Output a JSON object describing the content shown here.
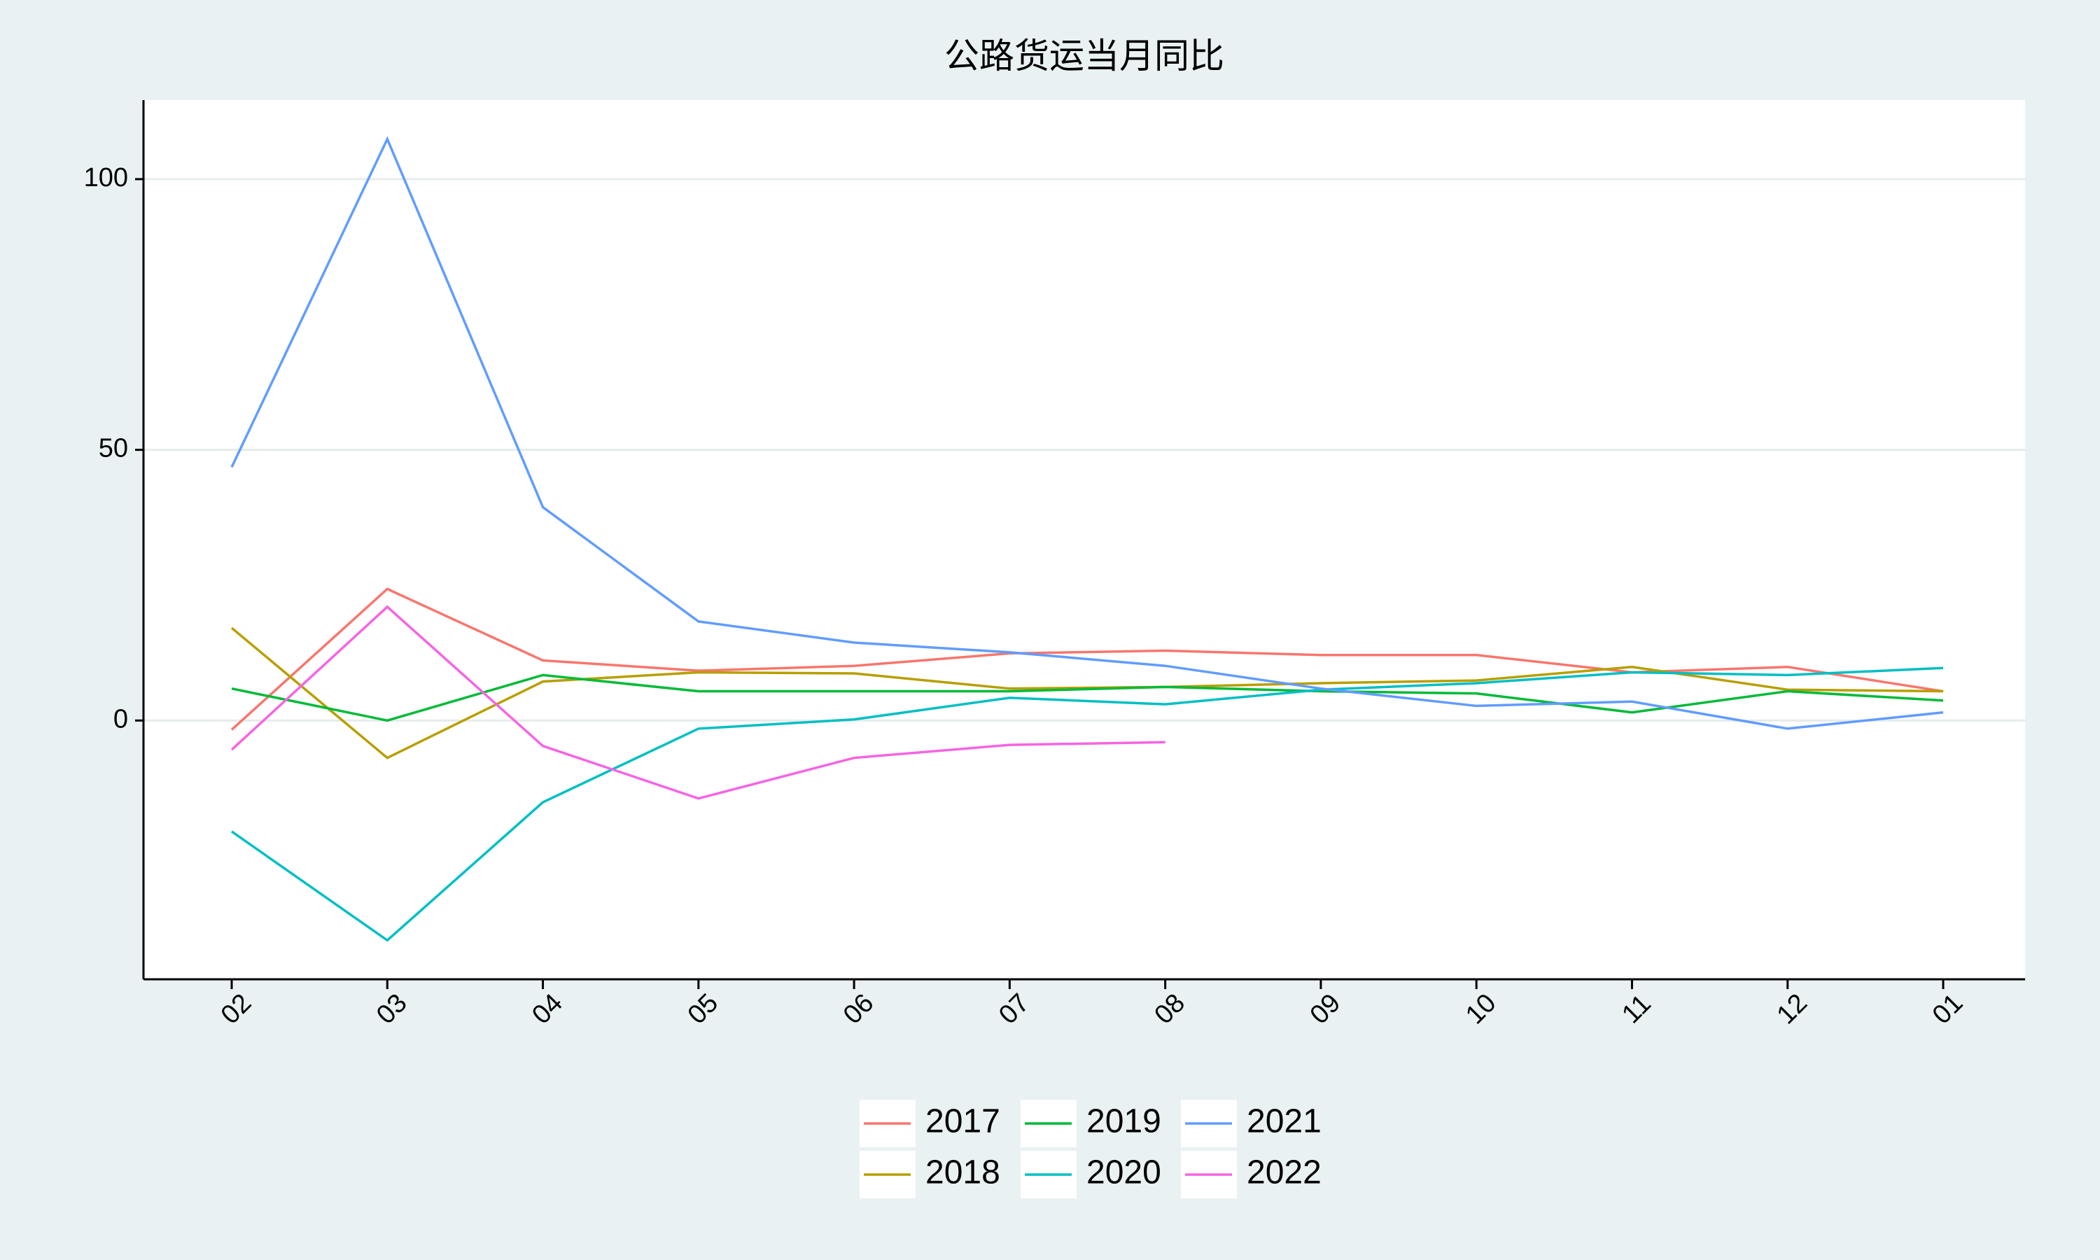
{
  "chart_data": {
    "type": "line",
    "title": "公路货运当月同比",
    "categories": [
      "02",
      "03",
      "04",
      "05",
      "06",
      "07",
      "08",
      "09",
      "10",
      "11",
      "12",
      "01"
    ],
    "series": [
      {
        "name": "2017",
        "color": "#F8766D",
        "values": [
          -1.7,
          24.3,
          11.1,
          9.2,
          10.1,
          12.4,
          12.9,
          12.1,
          12.1,
          8.9,
          9.9,
          5.4
        ]
      },
      {
        "name": "2018",
        "color": "#B79F00",
        "values": [
          17.1,
          -6.9,
          7.2,
          8.9,
          8.7,
          5.9,
          6.2,
          6.9,
          7.4,
          9.9,
          5.7,
          5.4
        ]
      },
      {
        "name": "2019",
        "color": "#00BA38",
        "values": [
          5.9,
          0,
          8.4,
          5.4,
          5.4,
          5.4,
          6.2,
          5.4,
          5.0,
          1.5,
          5.4,
          3.7
        ]
      },
      {
        "name": "2020",
        "color": "#00BFC4",
        "values": [
          -20.5,
          -40.6,
          -15.1,
          -1.5,
          0.2,
          4.2,
          3.0,
          5.7,
          6.9,
          8.9,
          8.4,
          9.7
        ]
      },
      {
        "name": "2021",
        "color": "#619CFF",
        "values": [
          46.8,
          107.4,
          39.4,
          18.3,
          14.4,
          12.6,
          10.1,
          5.9,
          2.7,
          3.5,
          -1.5,
          1.5
        ]
      },
      {
        "name": "2022",
        "color": "#F564E3",
        "values": [
          -5.4,
          21.0,
          -4.7,
          -14.4,
          -6.9,
          -4.5,
          -4.0,
          null,
          null,
          null,
          null,
          null
        ]
      }
    ],
    "ylim": [
      -47.8,
      114.6
    ],
    "yticks": [
      0,
      50,
      100
    ],
    "grid": true
  }
}
